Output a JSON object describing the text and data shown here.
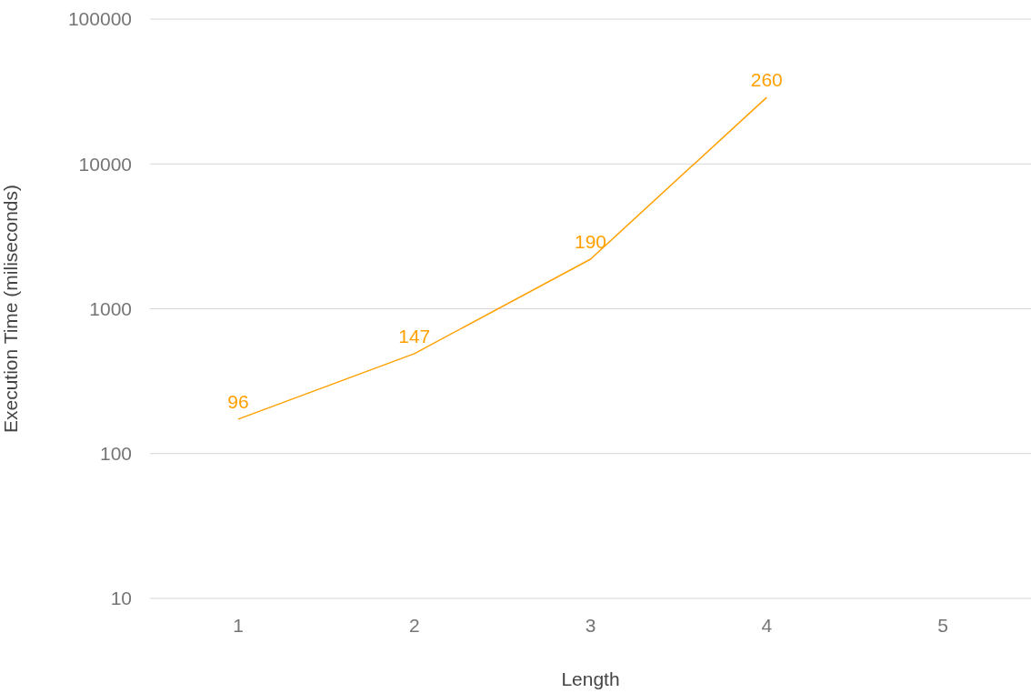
{
  "chart_data": {
    "type": "line",
    "xlabel": "Length",
    "ylabel": "Execution Time (miliseconds)",
    "categories": [
      "1",
      "2",
      "3",
      "4",
      "5"
    ],
    "series": [
      {
        "color": "#ffa000",
        "values": [
          173,
          490,
          2200,
          28800,
          null
        ]
      }
    ],
    "annotations": [
      {
        "text": "96",
        "x": "1",
        "y": 173
      },
      {
        "text": "147",
        "x": "2",
        "y": 490
      },
      {
        "text": "190",
        "x": "3",
        "y": 2200
      },
      {
        "text": "260",
        "x": "4",
        "y": 28800
      }
    ],
    "log": "y",
    "ylim": [
      10,
      100000
    ],
    "yticks": [
      10,
      100,
      1000,
      10000,
      100000
    ],
    "grid": "y",
    "marker": "none",
    "line_style": "solid"
  }
}
